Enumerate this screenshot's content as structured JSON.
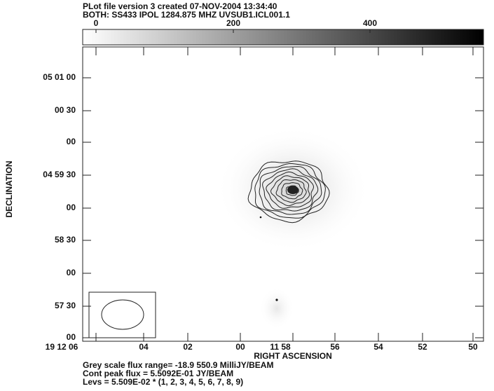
{
  "header": {
    "lines": [
      "PLot file version 3  created 07-NOV-2004 13:34:40",
      "BOTH: SS433  IPOL  1284.875 MHZ  UVSUB1.ICL001.1"
    ]
  },
  "colorbar": {
    "tick_labels": [
      "0",
      "200",
      "400"
    ]
  },
  "y_axis": {
    "title": "DECLINATION",
    "tick_labels": [
      "05 01 00",
      "00 30",
      "00",
      "04 59 30",
      "00",
      "58 30",
      "00",
      "57 30",
      "00"
    ]
  },
  "x_axis": {
    "title": "RIGHT ASCENSION",
    "tick_labels": [
      "19 12 06",
      "04",
      "02",
      "00",
      "11 58",
      "56",
      "54",
      "52",
      "50"
    ]
  },
  "footer": {
    "lines": [
      "Grey scale flux range= -18.9 550.9 MilliJY/BEAM",
      "Cont peak flux =  5.5092E-01 JY/BEAM",
      "Levs = 5.509E-02 * (1, 2, 3, 4, 5, 6, 7, 8, 9)"
    ]
  }
}
